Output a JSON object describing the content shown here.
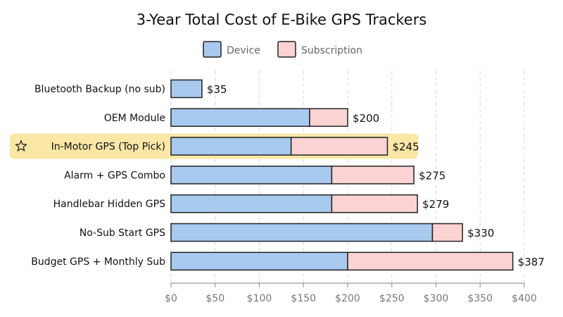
{
  "chart_data": {
    "type": "bar",
    "orientation": "horizontal",
    "stacked": true,
    "title": "3-Year Total Cost of E-Bike GPS Trackers",
    "xlabel": "",
    "ylabel": "",
    "xlim": [
      0,
      400
    ],
    "grid": true,
    "legend_position": "top-center",
    "categories": [
      "Bluetooth Backup (no sub)",
      "OEM Module",
      "In-Motor GPS (Top Pick)",
      "Alarm + GPS Combo",
      "Handlebar Hidden GPS",
      "No-Sub Start GPS",
      "Budget GPS + Monthly Sub"
    ],
    "series": [
      {
        "name": "Device",
        "values": [
          35,
          157,
          136,
          182,
          182,
          296,
          200
        ],
        "color": "#a8caee"
      },
      {
        "name": "Subscription",
        "values": [
          0,
          43,
          109,
          93,
          97,
          34,
          187
        ],
        "color": "#fbd3d3"
      }
    ],
    "totals": [
      35,
      200,
      245,
      275,
      279,
      330,
      387
    ],
    "total_labels": [
      "$35",
      "$200",
      "$245",
      "$275",
      "$279",
      "$330",
      "$387"
    ],
    "highlight_index": 2,
    "highlight_color": "#fbe7a6",
    "highlight_icon": "star-icon",
    "x_ticks": [
      0,
      50,
      100,
      150,
      200,
      250,
      300,
      350,
      400
    ],
    "x_tick_labels": [
      "$0",
      "$50",
      "$100",
      "$150",
      "$200",
      "$250",
      "$300",
      "$350",
      "$400"
    ]
  }
}
